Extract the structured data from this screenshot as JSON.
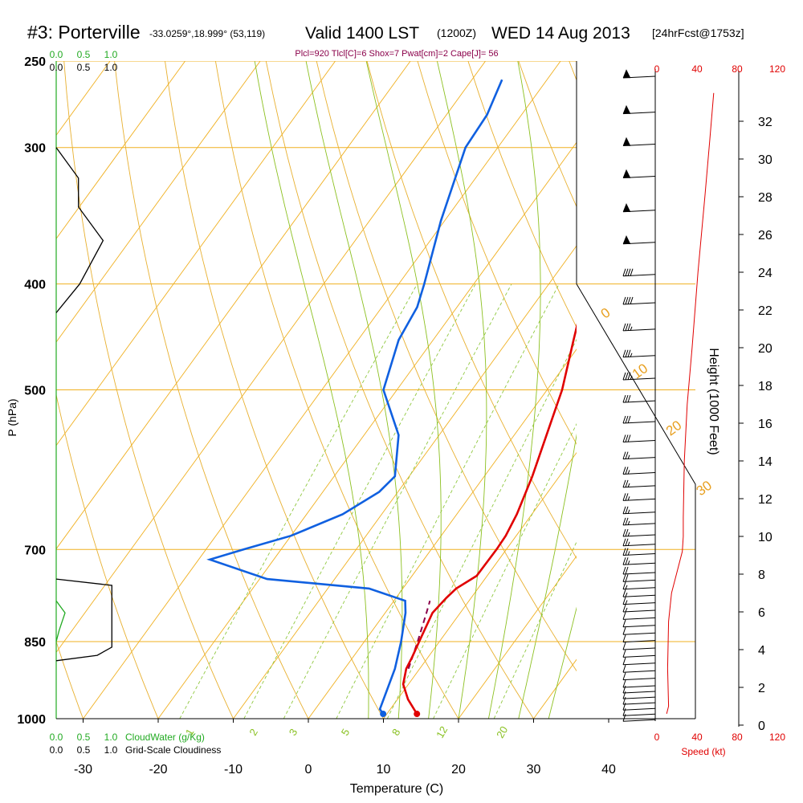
{
  "header": {
    "station": "#3: Porterville",
    "coords": "-33.0259°,18.999° (53,119)",
    "valid_main": "Valid 1400 LST",
    "valid_utc": "(1200Z)",
    "valid_date": "WED 14 Aug 2013",
    "forecast": "[24hrFcst@1753z]"
  },
  "stats_line": "Plcl=920 Tlcl[C]=6 Shox=7 Pwat[cm]=2 Cape[J]= 56",
  "colors": {
    "temperature": "#e00000",
    "dewpoint": "#1060e0",
    "parcel": "#8a004a",
    "isobar_isotherm": "#f0b020",
    "dry_adiabat": "#e8b030",
    "moist_adiabat": "#8cc020",
    "mixing_ratio": "#90c840",
    "cloud": "#000000",
    "cloudwater": "#22aa22",
    "wind": "#000000",
    "speed": "#e00000"
  },
  "chart_data": {
    "type": "line",
    "title": "#3: Porterville",
    "xlabel": "Temperature (C)",
    "ylabel": "P (hPa)",
    "right_ylabel": "Height (1000 Feet)",
    "x_ticks": [
      "-30",
      "-20",
      "-10",
      "0",
      "10",
      "20",
      "30",
      "40"
    ],
    "p_ticks": [
      "250",
      "300",
      "400",
      "500",
      "700",
      "850",
      "1000"
    ],
    "height_ticks": [
      "0",
      "2",
      "4",
      "6",
      "8",
      "10",
      "12",
      "14",
      "16",
      "18",
      "20",
      "22",
      "24",
      "26",
      "28",
      "30",
      "32"
    ],
    "speed_ticks_top": [
      "0",
      "40",
      "80",
      "120"
    ],
    "speed_ticks_bottom": [
      "0",
      "40",
      "80",
      "120"
    ],
    "speed_label": "Speed (kt)",
    "cloudwater_ticks_top": [
      "0.0",
      "0.5",
      "1.0"
    ],
    "cloudiness_ticks_top": [
      "0.0",
      "0.5",
      "1.0"
    ],
    "cloudwater_ticks_bottom": [
      "0.0",
      "0.5",
      "1.0"
    ],
    "cloudwater_label": "CloudWater (g/Kg)",
    "cloudiness_ticks_bottom": [
      "0.0",
      "0.5",
      "1.0"
    ],
    "cloudiness_label": "Grid-Scale Cloudiness",
    "mixing_ratio_labels": [
      "1",
      "2",
      "3",
      "5",
      "8",
      "12",
      "20"
    ],
    "isotherm_labels_left": [
      "10",
      "0",
      "-10",
      "-20",
      "-30"
    ],
    "isotherm_labels_right": [
      "0",
      "10",
      "20",
      "30"
    ],
    "series": [
      {
        "name": "temperature",
        "points": [
          {
            "p": 990,
            "t": 14.0
          },
          {
            "p": 960,
            "t": 11.4
          },
          {
            "p": 930,
            "t": 9.3
          },
          {
            "p": 900,
            "t": 8.2
          },
          {
            "p": 880,
            "t": 7.9
          },
          {
            "p": 850,
            "t": 7.3
          },
          {
            "p": 800,
            "t": 6.3
          },
          {
            "p": 775,
            "t": 6.7
          },
          {
            "p": 760,
            "t": 7.1
          },
          {
            "p": 740,
            "t": 8.6
          },
          {
            "p": 700,
            "t": 8.7
          },
          {
            "p": 680,
            "t": 8.6
          },
          {
            "p": 650,
            "t": 8.0
          },
          {
            "p": 600,
            "t": 6.4
          },
          {
            "p": 550,
            "t": 4.3
          },
          {
            "p": 500,
            "t": 2.0
          },
          {
            "p": 450,
            "t": -1.3
          },
          {
            "p": 400,
            "t": -4.9
          },
          {
            "p": 350,
            "t": -8.7
          },
          {
            "p": 320,
            "t": -11.3
          },
          {
            "p": 305,
            "t": -12.2
          },
          {
            "p": 290,
            "t": -12.1
          },
          {
            "p": 275,
            "t": -11.1
          },
          {
            "p": 260,
            "t": -9.0
          }
        ]
      },
      {
        "name": "dewpoint",
        "points": [
          {
            "p": 990,
            "t": 9.5
          },
          {
            "p": 980,
            "t": 8.6
          },
          {
            "p": 900,
            "t": 6.7
          },
          {
            "p": 850,
            "t": 4.9
          },
          {
            "p": 800,
            "t": 2.7
          },
          {
            "p": 780,
            "t": 1.5
          },
          {
            "p": 760,
            "t": -4.5
          },
          {
            "p": 745,
            "t": -19.0
          },
          {
            "p": 715,
            "t": -28.5
          },
          {
            "p": 700,
            "t": -25.0
          },
          {
            "p": 680,
            "t": -20.0
          },
          {
            "p": 650,
            "t": -15.2
          },
          {
            "p": 620,
            "t": -12.5
          },
          {
            "p": 600,
            "t": -11.9
          },
          {
            "p": 550,
            "t": -15.4
          },
          {
            "p": 500,
            "t": -21.8
          },
          {
            "p": 450,
            "t": -24.6
          },
          {
            "p": 420,
            "t": -25.3
          },
          {
            "p": 400,
            "t": -26.6
          },
          {
            "p": 350,
            "t": -30.5
          },
          {
            "p": 300,
            "t": -34.3
          },
          {
            "p": 280,
            "t": -34.6
          },
          {
            "p": 260,
            "t": -36.0
          }
        ]
      },
      {
        "name": "parcel",
        "points": [
          {
            "p": 900,
            "t": 8.5
          },
          {
            "p": 850,
            "t": 7.1
          },
          {
            "p": 800,
            "t": 5.5
          },
          {
            "p": 780,
            "t": 4.8
          }
        ]
      }
    ],
    "surface_temperature": {
      "p": 990,
      "t": 14.0
    },
    "surface_dewpoint": {
      "p": 990,
      "t": 9.5
    },
    "cloudiness_profile": [
      {
        "p": 300,
        "v": 0.0
      },
      {
        "p": 320,
        "v": 0.38
      },
      {
        "p": 340,
        "v": 0.38
      },
      {
        "p": 365,
        "v": 0.8
      },
      {
        "p": 400,
        "v": 0.4
      },
      {
        "p": 425,
        "v": 0.0
      },
      {
        "p": 745,
        "v": 0.0
      },
      {
        "p": 755,
        "v": 0.95
      },
      {
        "p": 860,
        "v": 0.95
      },
      {
        "p": 875,
        "v": 0.7
      },
      {
        "p": 885,
        "v": 0.0
      }
    ],
    "cloudwater_profile": [
      {
        "p": 780,
        "v": 0.0
      },
      {
        "p": 800,
        "v": 0.15
      },
      {
        "p": 830,
        "v": 0.05
      },
      {
        "p": 850,
        "v": 0.0
      }
    ],
    "wind_speed_profile": [
      {
        "h": 0.6,
        "kt": 10
      },
      {
        "h": 1.0,
        "kt": 12
      },
      {
        "h": 3.0,
        "kt": 11
      },
      {
        "h": 5.5,
        "kt": 12
      },
      {
        "h": 7.0,
        "kt": 15
      },
      {
        "h": 8.0,
        "kt": 20
      },
      {
        "h": 9.2,
        "kt": 26
      },
      {
        "h": 10.0,
        "kt": 27
      },
      {
        "h": 11.0,
        "kt": 27
      },
      {
        "h": 14.0,
        "kt": 28
      },
      {
        "h": 17.0,
        "kt": 31
      },
      {
        "h": 20.0,
        "kt": 36
      },
      {
        "h": 24.0,
        "kt": 42
      },
      {
        "h": 28.0,
        "kt": 49
      },
      {
        "h": 31.0,
        "kt": 54
      },
      {
        "h": 33.5,
        "kt": 58
      }
    ],
    "wind_barbs": [
      {
        "h": 0.2,
        "kt": 10
      },
      {
        "h": 0.5,
        "kt": 10
      },
      {
        "h": 0.8,
        "kt": 10
      },
      {
        "h": 1.1,
        "kt": 10
      },
      {
        "h": 1.4,
        "kt": 10
      },
      {
        "h": 1.7,
        "kt": 10
      },
      {
        "h": 2.0,
        "kt": 10
      },
      {
        "h": 2.4,
        "kt": 10
      },
      {
        "h": 2.8,
        "kt": 10
      },
      {
        "h": 3.2,
        "kt": 10
      },
      {
        "h": 3.6,
        "kt": 10
      },
      {
        "h": 4.0,
        "kt": 10
      },
      {
        "h": 4.4,
        "kt": 10
      },
      {
        "h": 4.8,
        "kt": 10
      },
      {
        "h": 5.2,
        "kt": 10
      },
      {
        "h": 5.6,
        "kt": 10
      },
      {
        "h": 6.0,
        "kt": 15
      },
      {
        "h": 6.4,
        "kt": 15
      },
      {
        "h": 6.8,
        "kt": 15
      },
      {
        "h": 7.2,
        "kt": 15
      },
      {
        "h": 7.6,
        "kt": 20
      },
      {
        "h": 8.0,
        "kt": 20
      },
      {
        "h": 8.5,
        "kt": 25
      },
      {
        "h": 9.0,
        "kt": 25
      },
      {
        "h": 9.5,
        "kt": 25
      },
      {
        "h": 10.0,
        "kt": 25
      },
      {
        "h": 10.6,
        "kt": 25
      },
      {
        "h": 11.2,
        "kt": 25
      },
      {
        "h": 11.9,
        "kt": 25
      },
      {
        "h": 12.6,
        "kt": 25
      },
      {
        "h": 13.3,
        "kt": 25
      },
      {
        "h": 14.1,
        "kt": 25
      },
      {
        "h": 15.0,
        "kt": 30
      },
      {
        "h": 16.0,
        "kt": 30
      },
      {
        "h": 17.1,
        "kt": 30
      },
      {
        "h": 18.3,
        "kt": 35
      },
      {
        "h": 19.5,
        "kt": 35
      },
      {
        "h": 20.9,
        "kt": 35
      },
      {
        "h": 22.3,
        "kt": 40
      },
      {
        "h": 23.8,
        "kt": 40
      },
      {
        "h": 25.5,
        "kt": 50
      },
      {
        "h": 27.2,
        "kt": 50
      },
      {
        "h": 29.0,
        "kt": 50
      },
      {
        "h": 30.7,
        "kt": 50
      },
      {
        "h": 32.4,
        "kt": 50
      },
      {
        "h": 34.3,
        "kt": 50
      }
    ]
  }
}
